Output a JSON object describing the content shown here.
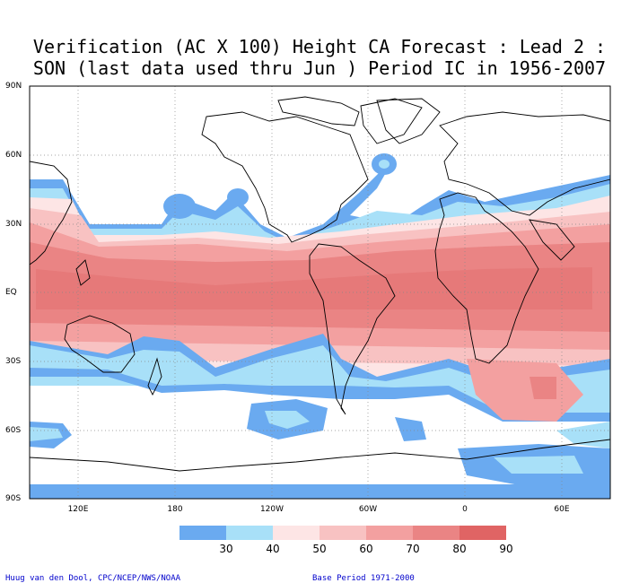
{
  "title_line1": "Verification (AC X 100) Height CA Forecast : Lead 2 :",
  "title_line2": "SON (last data used thru Jun ) Period IC in 1956-2007",
  "lat_labels": [
    "90N",
    "60N",
    "30N",
    "EQ",
    "30S",
    "60S",
    "90S"
  ],
  "lon_labels": [
    "120E",
    "180",
    "120W",
    "60W",
    "0",
    "60E"
  ],
  "colorbar": {
    "labels": [
      "30",
      "40",
      "50",
      "60",
      "70",
      "80",
      "90"
    ],
    "colors": [
      "#6aaaf0",
      "#a8e0f8",
      "#fde5e5",
      "#f8c2c2",
      "#f3a0a0",
      "#ea8484",
      "#e06464"
    ]
  },
  "footer_left": "Huug van den Dool, CPC/NCEP/NWS/NOAA",
  "footer_right": "Base Period 1971-2000"
}
